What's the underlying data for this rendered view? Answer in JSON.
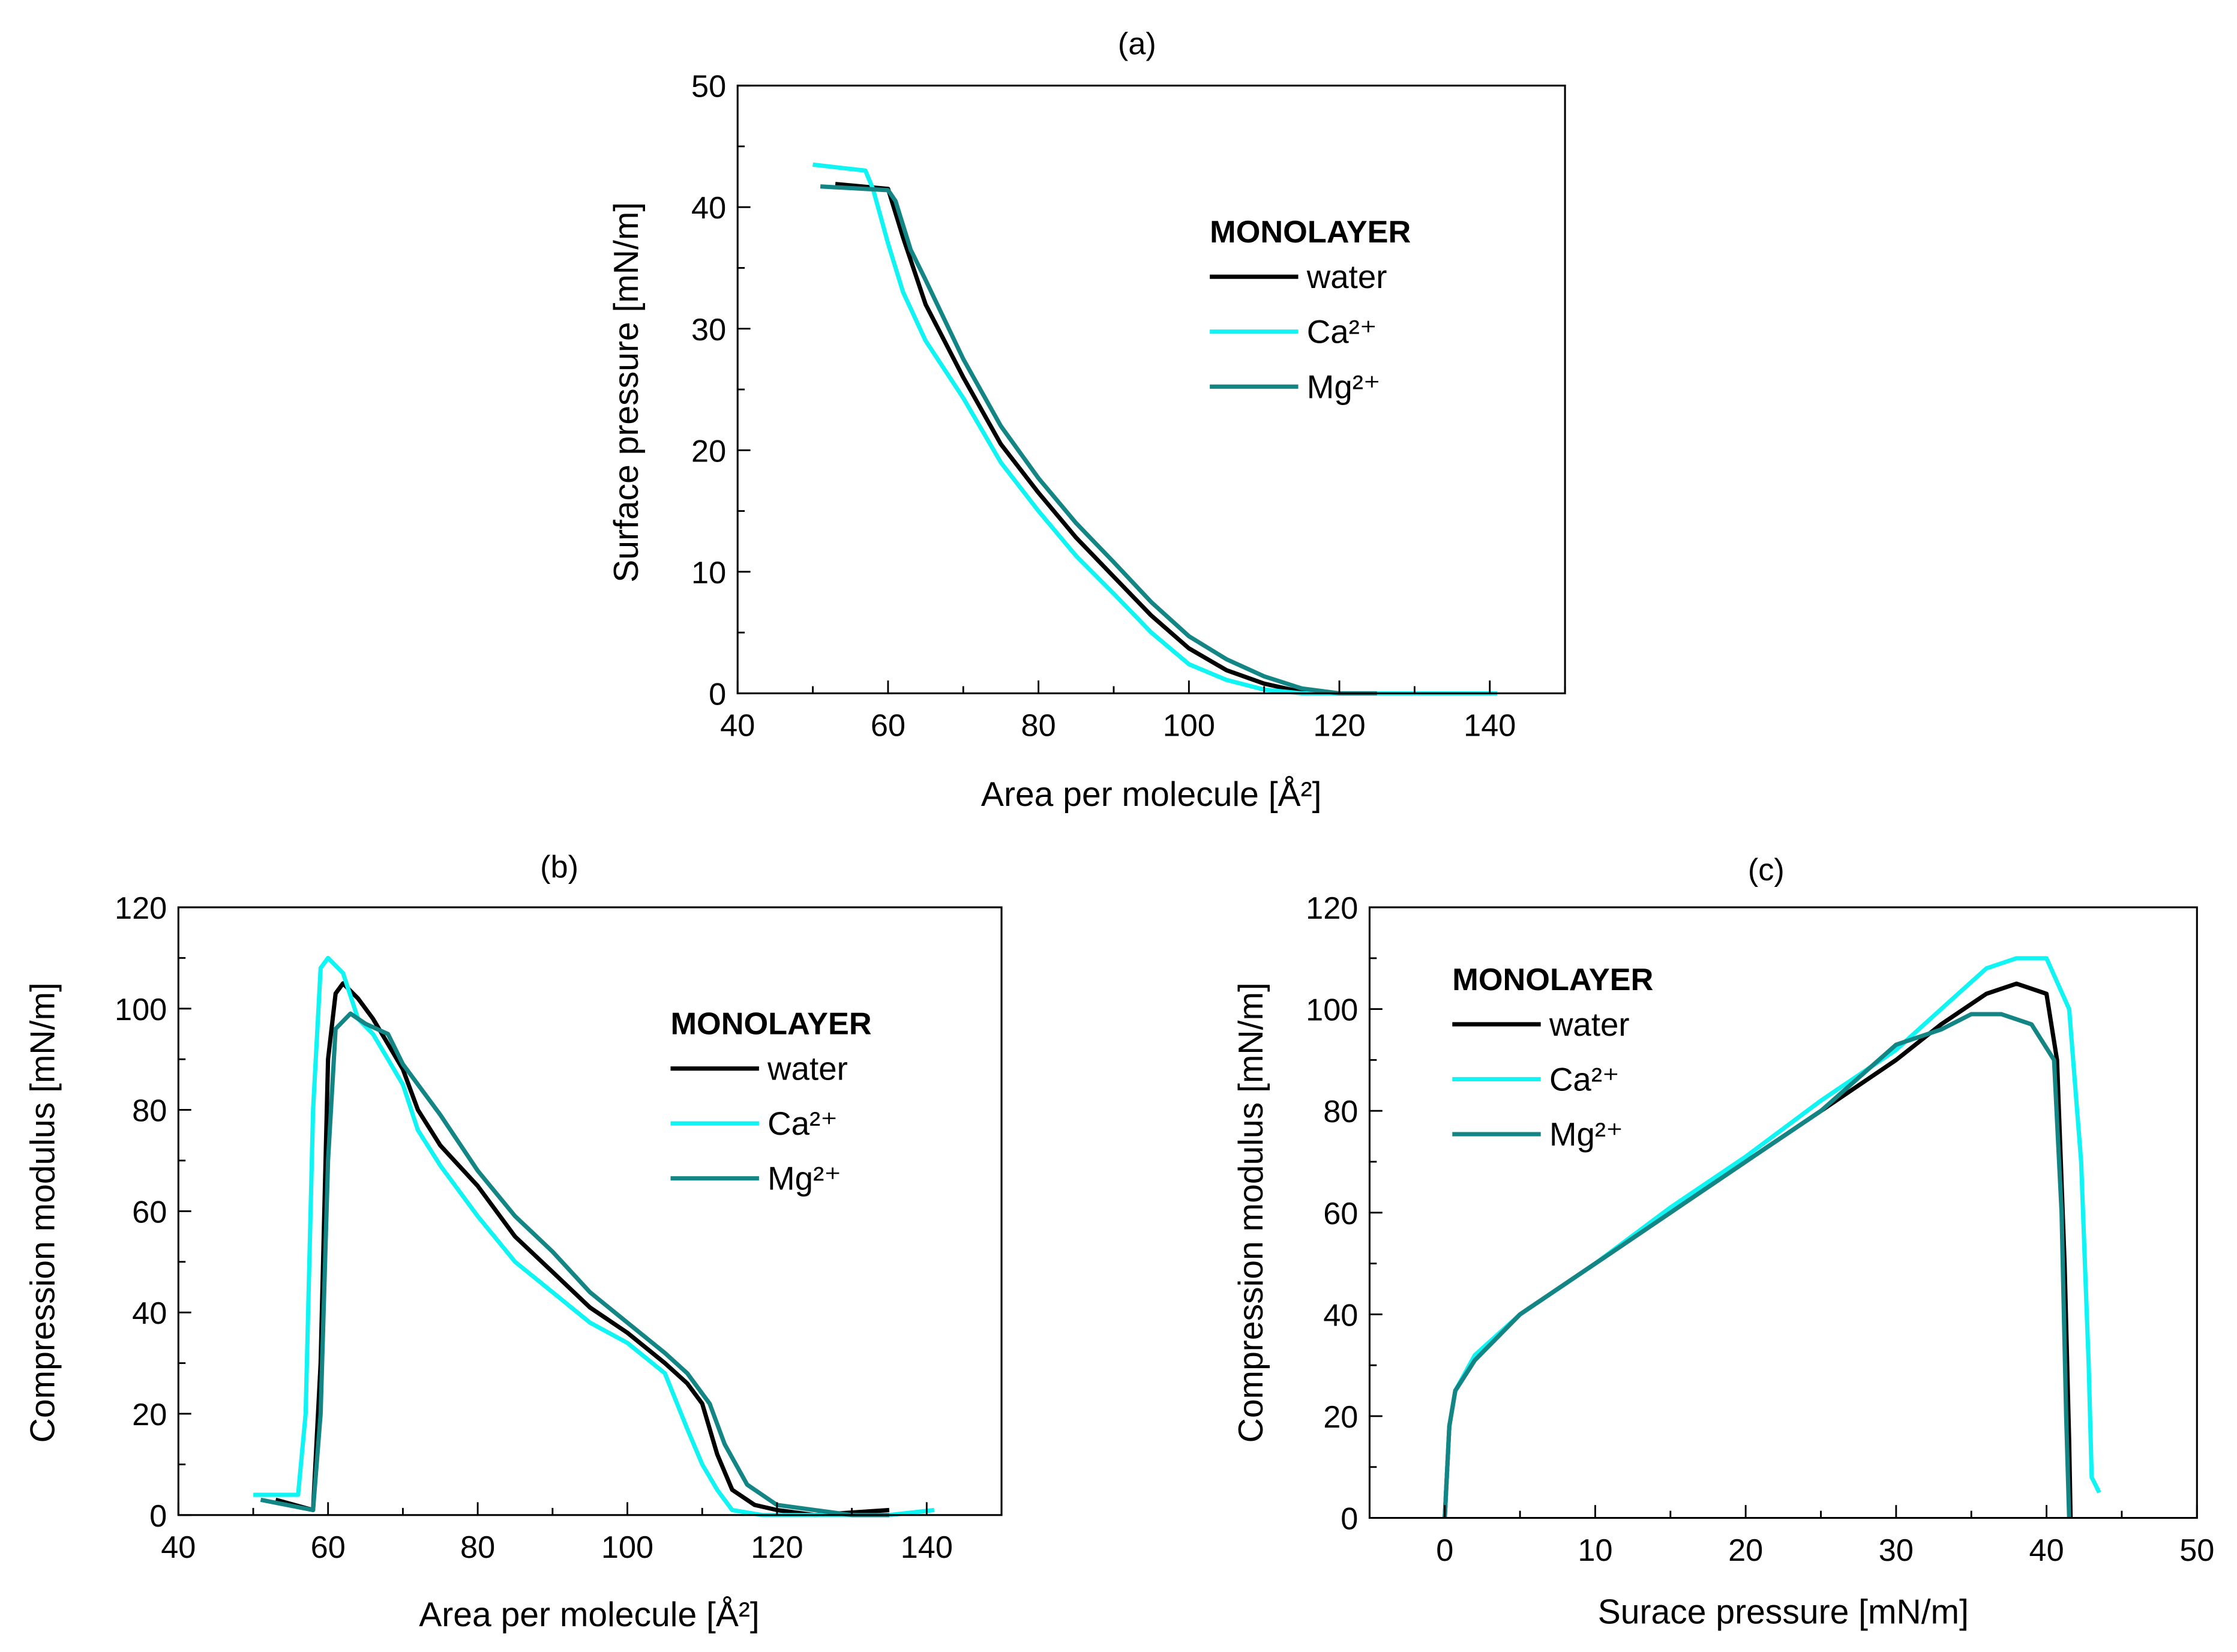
{
  "colors": {
    "water": "#000000",
    "Ca": "#10f4f4",
    "Mg": "#138585"
  },
  "chart_data": [
    {
      "panel_label": "(a)",
      "type": "line",
      "xlabel": "Area per molecule [Å²]",
      "ylabel": "Surface pressure [mN/m]",
      "xlim": [
        40,
        150
      ],
      "ylim": [
        0,
        50
      ],
      "xticks": [
        40,
        60,
        80,
        100,
        120,
        140
      ],
      "yticks": [
        0,
        10,
        20,
        30,
        40,
        50
      ],
      "grid": false,
      "legend": {
        "title": "MONOLAYER",
        "placement": "top-right",
        "entries": [
          "water",
          "Ca²⁺",
          "Mg²⁺"
        ]
      },
      "series": [
        {
          "name": "water",
          "color_key": "water",
          "points": [
            [
              53,
              41.9
            ],
            [
              60,
              41.5
            ],
            [
              62,
              37.5
            ],
            [
              65,
              32
            ],
            [
              70,
              26
            ],
            [
              75,
              20.5
            ],
            [
              80,
              16.5
            ],
            [
              85,
              12.8
            ],
            [
              90,
              9.6
            ],
            [
              95,
              6.4
            ],
            [
              100,
              3.7
            ],
            [
              105,
              1.9
            ],
            [
              110,
              0.8
            ],
            [
              115,
              0.1
            ],
            [
              120,
              0
            ]
          ]
        },
        {
          "name": "Ca²⁺",
          "color_key": "Ca",
          "points": [
            [
              50,
              43.5
            ],
            [
              57,
              43
            ],
            [
              58,
              41.5
            ],
            [
              60,
              37
            ],
            [
              62,
              33
            ],
            [
              65,
              29
            ],
            [
              70,
              24.3
            ],
            [
              75,
              19
            ],
            [
              80,
              15
            ],
            [
              85,
              11.3
            ],
            [
              90,
              8.2
            ],
            [
              95,
              5
            ],
            [
              100,
              2.4
            ],
            [
              105,
              1.1
            ],
            [
              110,
              0.3
            ],
            [
              115,
              0
            ],
            [
              141,
              0
            ]
          ]
        },
        {
          "name": "Mg²⁺",
          "color_key": "Mg",
          "points": [
            [
              51,
              41.7
            ],
            [
              60,
              41.4
            ],
            [
              61,
              40.5
            ],
            [
              63,
              36.5
            ],
            [
              65,
              34
            ],
            [
              70,
              27.5
            ],
            [
              75,
              22
            ],
            [
              80,
              17.7
            ],
            [
              85,
              14
            ],
            [
              90,
              10.8
            ],
            [
              95,
              7.5
            ],
            [
              100,
              4.7
            ],
            [
              105,
              2.8
            ],
            [
              110,
              1.4
            ],
            [
              115,
              0.4
            ],
            [
              120,
              0
            ],
            [
              125,
              0
            ]
          ]
        }
      ]
    },
    {
      "panel_label": "(b)",
      "type": "line",
      "xlabel": "Area per molecule [Å²]",
      "ylabel": "Compression modulus [mN/m]",
      "xlim": [
        40,
        150
      ],
      "ylim": [
        0,
        120
      ],
      "xticks": [
        40,
        60,
        80,
        100,
        120,
        140
      ],
      "yticks": [
        0,
        20,
        40,
        60,
        80,
        100,
        120
      ],
      "grid": false,
      "legend": {
        "title": "MONOLAYER",
        "placement": "top-right",
        "entries": [
          "water",
          "Ca²⁺",
          "Mg²⁺"
        ]
      },
      "series": [
        {
          "name": "water",
          "color_key": "water",
          "points": [
            [
              53,
              3
            ],
            [
              58,
              1
            ],
            [
              59,
              30
            ],
            [
              60,
              90
            ],
            [
              61,
              103
            ],
            [
              62,
              105
            ],
            [
              64,
              102
            ],
            [
              66,
              98
            ],
            [
              68,
              93
            ],
            [
              70,
              88
            ],
            [
              72,
              80
            ],
            [
              75,
              73
            ],
            [
              80,
              65
            ],
            [
              85,
              55
            ],
            [
              90,
              48
            ],
            [
              95,
              41
            ],
            [
              100,
              36
            ],
            [
              105,
              30
            ],
            [
              108,
              26
            ],
            [
              110,
              22
            ],
            [
              112,
              12
            ],
            [
              114,
              5
            ],
            [
              117,
              2
            ],
            [
              120,
              1
            ],
            [
              125,
              0
            ],
            [
              135,
              1
            ]
          ]
        },
        {
          "name": "Ca²⁺",
          "color_key": "Ca",
          "points": [
            [
              50,
              4
            ],
            [
              56,
              4
            ],
            [
              57,
              20
            ],
            [
              58,
              80
            ],
            [
              59,
              108
            ],
            [
              60,
              110
            ],
            [
              62,
              107
            ],
            [
              64,
              98
            ],
            [
              66,
              95
            ],
            [
              68,
              90
            ],
            [
              70,
              85
            ],
            [
              72,
              76
            ],
            [
              75,
              69
            ],
            [
              80,
              59
            ],
            [
              85,
              50
            ],
            [
              90,
              44
            ],
            [
              95,
              38
            ],
            [
              100,
              34
            ],
            [
              105,
              28
            ],
            [
              108,
              17
            ],
            [
              110,
              10
            ],
            [
              112,
              5
            ],
            [
              114,
              1
            ],
            [
              118,
              0
            ],
            [
              125,
              0
            ],
            [
              135,
              0
            ],
            [
              141,
              1
            ]
          ]
        },
        {
          "name": "Mg²⁺",
          "color_key": "Mg",
          "points": [
            [
              51,
              3
            ],
            [
              58,
              1
            ],
            [
              59,
              20
            ],
            [
              60,
              70
            ],
            [
              61,
              96
            ],
            [
              63,
              99
            ],
            [
              65,
              97
            ],
            [
              68,
              95
            ],
            [
              70,
              89
            ],
            [
              75,
              79
            ],
            [
              80,
              68
            ],
            [
              85,
              59
            ],
            [
              90,
              52
            ],
            [
              95,
              44
            ],
            [
              100,
              38
            ],
            [
              105,
              32
            ],
            [
              108,
              28
            ],
            [
              111,
              22
            ],
            [
              113,
              14
            ],
            [
              116,
              6
            ],
            [
              120,
              2
            ],
            [
              125,
              1
            ],
            [
              130,
              0
            ],
            [
              135,
              0
            ]
          ]
        }
      ]
    },
    {
      "panel_label": "(c)",
      "type": "line",
      "xlabel": "Surace pressure [mN/m]",
      "ylabel": "Compression modulus [mN/m]",
      "xlim": [
        -5,
        50
      ],
      "ylim": [
        0,
        120
      ],
      "xticks": [
        0,
        10,
        20,
        30,
        40,
        50
      ],
      "yticks": [
        0,
        20,
        40,
        60,
        80,
        100,
        120
      ],
      "grid": false,
      "legend": {
        "title": "MONOLAYER",
        "placement": "top-left",
        "entries": [
          "water",
          "Ca²⁺",
          "Mg²⁺"
        ]
      },
      "series": [
        {
          "name": "water",
          "color_key": "water",
          "points": [
            [
              0,
              0
            ],
            [
              0.3,
              18
            ],
            [
              0.7,
              25
            ],
            [
              2,
              31
            ],
            [
              5,
              40
            ],
            [
              10,
              50
            ],
            [
              15,
              60
            ],
            [
              20,
              70
            ],
            [
              25,
              80
            ],
            [
              30,
              90
            ],
            [
              33,
              97
            ],
            [
              36,
              103
            ],
            [
              38,
              105
            ],
            [
              40,
              103
            ],
            [
              40.7,
              90
            ],
            [
              41.2,
              50
            ],
            [
              41.5,
              15
            ],
            [
              41.6,
              0
            ]
          ]
        },
        {
          "name": "Ca²⁺",
          "color_key": "Ca",
          "points": [
            [
              0,
              0
            ],
            [
              0.3,
              18
            ],
            [
              0.7,
              25
            ],
            [
              2,
              32
            ],
            [
              5,
              40
            ],
            [
              10,
              50
            ],
            [
              15,
              61
            ],
            [
              20,
              71
            ],
            [
              25,
              82
            ],
            [
              30,
              92
            ],
            [
              33,
              100
            ],
            [
              36,
              108
            ],
            [
              38,
              110
            ],
            [
              40,
              110
            ],
            [
              41.5,
              100
            ],
            [
              42.3,
              70
            ],
            [
              42.8,
              30
            ],
            [
              43,
              8
            ],
            [
              43.5,
              5
            ]
          ]
        },
        {
          "name": "Mg²⁺",
          "color_key": "Mg",
          "points": [
            [
              0,
              0
            ],
            [
              0.3,
              18
            ],
            [
              0.7,
              25
            ],
            [
              2,
              31
            ],
            [
              5,
              40
            ],
            [
              10,
              50
            ],
            [
              15,
              60
            ],
            [
              20,
              70
            ],
            [
              25,
              80
            ],
            [
              30,
              93
            ],
            [
              33,
              96
            ],
            [
              35,
              99
            ],
            [
              37,
              99
            ],
            [
              39,
              97
            ],
            [
              40.5,
              90
            ],
            [
              41,
              60
            ],
            [
              41.3,
              20
            ],
            [
              41.5,
              0
            ]
          ]
        }
      ]
    }
  ]
}
